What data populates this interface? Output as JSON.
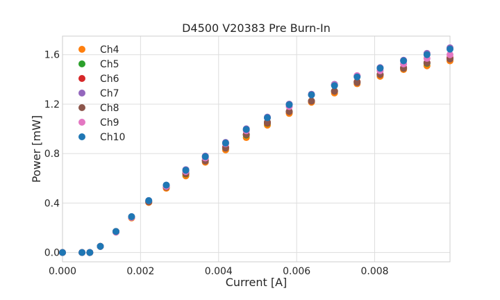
{
  "chart_data": {
    "type": "scatter",
    "title": "D4500 V20383 Pre Burn-In",
    "xlabel": "Current [A]",
    "ylabel": "Power [mW]",
    "xlim": [
      0,
      0.00993
    ],
    "ylim": [
      -0.075,
      1.75
    ],
    "xticks": [
      0,
      0.002,
      0.004,
      0.006,
      0.008
    ],
    "xtick_labels": [
      "0.000",
      "0.002",
      "0.004",
      "0.006",
      "0.008"
    ],
    "yticks": [
      0.0,
      0.4,
      0.8,
      1.2,
      1.6
    ],
    "ytick_labels": [
      "0.0",
      "0.4",
      "0.8",
      "1.2",
      "1.6"
    ],
    "grid": true,
    "legend_position": "top-left",
    "x": [
      0,
      0.0005,
      0.0007,
      0.00097,
      0.00137,
      0.00177,
      0.00221,
      0.00266,
      0.00316,
      0.00366,
      0.00418,
      0.00471,
      0.00525,
      0.00581,
      0.00638,
      0.00697,
      0.00755,
      0.00814,
      0.00874,
      0.00934,
      0.00993
    ],
    "series": [
      {
        "name": "Ch4",
        "color": "#ff7f0e",
        "values": [
          0.0,
          0.0,
          0.0,
          0.05,
          0.165,
          0.28,
          0.405,
          0.52,
          0.62,
          0.73,
          0.83,
          0.93,
          1.03,
          1.125,
          1.215,
          1.29,
          1.365,
          1.425,
          1.48,
          1.51,
          1.55
        ]
      },
      {
        "name": "Ch5",
        "color": "#2ca02c",
        "values": [
          0.0,
          0.0,
          0.0,
          0.05,
          0.17,
          0.285,
          0.41,
          0.53,
          0.635,
          0.745,
          0.845,
          0.95,
          1.045,
          1.14,
          1.225,
          1.305,
          1.38,
          1.44,
          1.49,
          1.53,
          1.57
        ]
      },
      {
        "name": "Ch6",
        "color": "#d62728",
        "values": [
          0.0,
          0.0,
          0.0,
          0.05,
          0.17,
          0.285,
          0.41,
          0.53,
          0.64,
          0.745,
          0.85,
          0.955,
          1.05,
          1.14,
          1.225,
          1.305,
          1.38,
          1.44,
          1.495,
          1.535,
          1.575
        ]
      },
      {
        "name": "Ch7",
        "color": "#9467bd",
        "values": [
          0.0,
          0.0,
          0.0,
          0.05,
          0.17,
          0.29,
          0.42,
          0.545,
          0.67,
          0.78,
          0.89,
          1.0,
          1.095,
          1.2,
          1.28,
          1.36,
          1.43,
          1.495,
          1.555,
          1.61,
          1.655
        ]
      },
      {
        "name": "Ch8",
        "color": "#8c564b",
        "values": [
          0.0,
          0.0,
          0.0,
          0.05,
          0.17,
          0.285,
          0.41,
          0.53,
          0.645,
          0.74,
          0.845,
          0.955,
          1.055,
          1.14,
          1.225,
          1.305,
          1.375,
          1.44,
          1.49,
          1.535,
          1.565
        ]
      },
      {
        "name": "Ch9",
        "color": "#e377c2",
        "values": [
          0.0,
          0.0,
          0.0,
          0.05,
          0.165,
          0.285,
          0.42,
          0.535,
          0.655,
          0.765,
          0.88,
          0.985,
          1.09,
          1.18,
          1.275,
          1.355,
          1.43,
          1.47,
          1.525,
          1.57,
          1.6
        ]
      },
      {
        "name": "Ch10",
        "color": "#1f77b4",
        "values": [
          0.0,
          0.0,
          0.0,
          0.05,
          0.17,
          0.29,
          0.42,
          0.545,
          0.665,
          0.775,
          0.885,
          0.995,
          1.09,
          1.195,
          1.275,
          1.35,
          1.42,
          1.49,
          1.55,
          1.6,
          1.645
        ]
      }
    ]
  }
}
